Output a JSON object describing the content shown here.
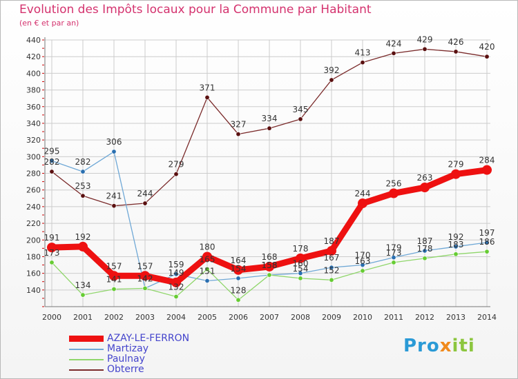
{
  "header": {
    "title": "Evolution des Impôts locaux pour la Commune par Habitant",
    "subtitle": "(en € et par an)"
  },
  "brand": {
    "p1": "Pro",
    "p2": "x",
    "p3": "iti"
  },
  "colors": {
    "title": "#d4326e",
    "grid": "#cccccc",
    "axis": "#777777",
    "tick_mark": "#cc0000"
  },
  "chart_data": {
    "type": "line",
    "title": "Evolution des Impôts locaux pour la Commune par Habitant",
    "subtitle": "(en € et par an)",
    "xlabel": "",
    "ylabel": "",
    "ylim": [
      120,
      440
    ],
    "yticks": [
      140,
      160,
      180,
      200,
      220,
      240,
      260,
      280,
      300,
      320,
      340,
      360,
      380,
      400,
      420,
      440
    ],
    "grid": true,
    "legend_position": "bottom-left",
    "x": [
      "2000",
      "2001",
      "2002",
      "2003",
      "2004",
      "2005",
      "2006",
      "2007",
      "2008",
      "2009",
      "2010",
      "2011",
      "2012",
      "2013",
      "2014"
    ],
    "series": [
      {
        "name": "AZAY-LE-FERRON",
        "color": "#ee1111",
        "marker_color": "#ee1111",
        "line_width": 9,
        "marker_r": 7,
        "values": [
          191,
          192,
          157,
          157,
          149,
          180,
          164,
          168,
          178,
          187,
          244,
          256,
          263,
          279,
          284
        ]
      },
      {
        "name": "Martizay",
        "color": "#6fa8d6",
        "marker_color": "#2a6fb0",
        "line_width": 1.3,
        "marker_r": 3.2,
        "values": [
          295,
          282,
          306,
          142,
          159,
          151,
          154,
          158,
          160,
          167,
          170,
          179,
          187,
          192,
          197
        ]
      },
      {
        "name": "Paulnay",
        "color": "#8fd66a",
        "marker_color": "#66cc33",
        "line_width": 1.3,
        "marker_r": 3.2,
        "values": [
          173,
          134,
          141,
          142,
          132,
          165,
          128,
          158,
          154,
          152,
          163,
          173,
          178,
          183,
          186
        ]
      },
      {
        "name": "Obterre",
        "color": "#7a2a2a",
        "marker_color": "#5a1010",
        "line_width": 1.3,
        "marker_r": 3.2,
        "values": [
          282,
          253,
          241,
          244,
          279,
          371,
          327,
          334,
          345,
          392,
          413,
          424,
          429,
          426,
          420
        ]
      }
    ]
  }
}
